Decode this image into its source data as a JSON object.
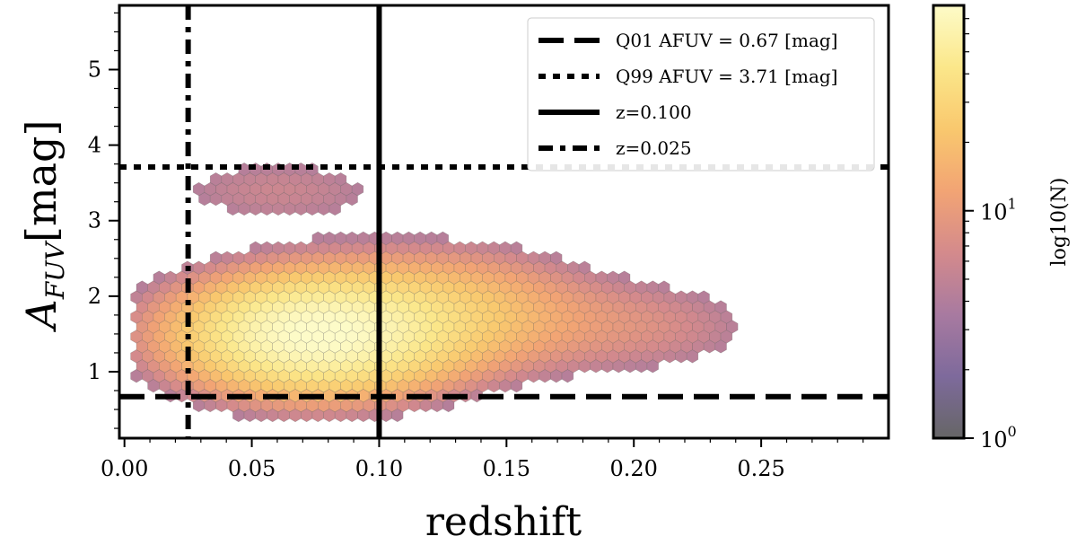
{
  "chart_data": {
    "type": "scatter",
    "subtype": "hexbin",
    "xlabel": "redshift",
    "ylabel": "A",
    "ylabel_sub": "FUV",
    "ylabel_unit": "[mag]",
    "xlim": [
      -0.002,
      0.3
    ],
    "ylim": [
      0.12,
      5.85
    ],
    "xticks": [
      0.0,
      0.05,
      0.1,
      0.15,
      0.2,
      0.25
    ],
    "xtick_labels": [
      "0.00",
      "0.05",
      "0.10",
      "0.15",
      "0.20",
      "0.25"
    ],
    "yticks": [
      1,
      2,
      3,
      4,
      5
    ],
    "ytick_labels": [
      "1",
      "2",
      "3",
      "4",
      "5"
    ],
    "density_model": {
      "peak_redshift": 0.075,
      "peak_afuv": 1.5,
      "max_count": 80,
      "outer_cutoff": 0.04
    },
    "reference_lines": [
      {
        "name": "Q01 AFUV",
        "orientation": "horizontal",
        "value": 0.67,
        "style": "dashed"
      },
      {
        "name": "Q99 AFUV",
        "orientation": "horizontal",
        "value": 3.71,
        "style": "dotted"
      },
      {
        "name": "z=0.100",
        "orientation": "vertical",
        "value": 0.1,
        "style": "solid"
      },
      {
        "name": "z=0.025",
        "orientation": "vertical",
        "value": 0.025,
        "style": "dashdot"
      }
    ],
    "legend": {
      "position": "top-right",
      "entries": [
        {
          "label": "Q01 AFUV = 0.67 [mag]",
          "style": "dashed"
        },
        {
          "label": "Q99 AFUV = 3.71 [mag]",
          "style": "dotted"
        },
        {
          "label": "z=0.100",
          "style": "solid"
        },
        {
          "label": "z=0.025",
          "style": "dashdot"
        }
      ]
    },
    "colorbar": {
      "label": "log10(N)",
      "scale": "log",
      "range": [
        1,
        80
      ],
      "tick_labels": [
        {
          "base": "10",
          "exp": "0",
          "value": 1
        },
        {
          "base": "10",
          "exp": "1",
          "value": 10
        }
      ],
      "colormap": [
        "#666666",
        "#7e6a9c",
        "#a87aa0",
        "#d48a8c",
        "#f2a474",
        "#f9c86e",
        "#fbe78a",
        "#fdfbc8"
      ]
    }
  }
}
